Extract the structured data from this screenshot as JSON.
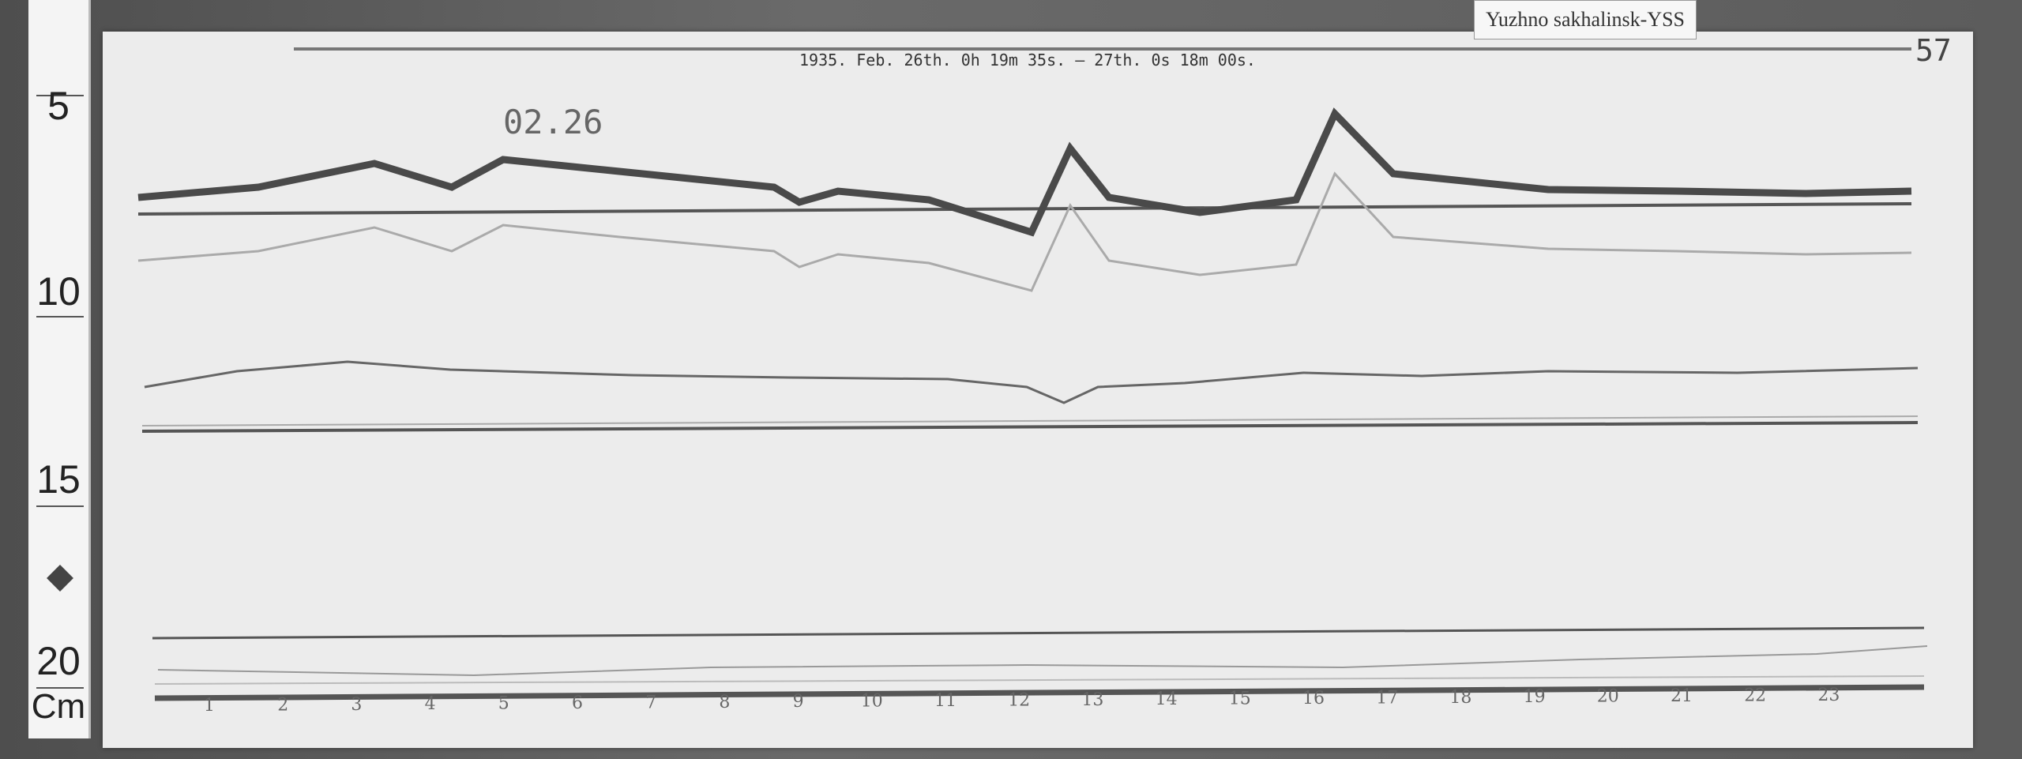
{
  "station_label": "Yuzhno sakhalinsk-YSS",
  "record_title": "1935. Feb. 26th. 0h 19m 35s. — 27th. 0s 18m 00s.",
  "date_note": "02.26",
  "sheet_number": "57",
  "ruler": {
    "labels": [
      "5",
      "10",
      "15",
      "20"
    ],
    "unit": "Cm"
  },
  "chart_data": {
    "type": "line",
    "title": "1935. Feb. 26th. 0h 19m 35s. — 27th. 0s 18m 00s.",
    "x_tick_labels": [
      "1",
      "2",
      "3",
      "4",
      "5",
      "6",
      "7",
      "8",
      "9",
      "10",
      "11",
      "12",
      "13",
      "14",
      "15",
      "16",
      "17",
      "18",
      "19",
      "20",
      "21",
      "22",
      "23"
    ],
    "xlabel": "",
    "ylabel": "",
    "traces": 3,
    "grid": false
  }
}
